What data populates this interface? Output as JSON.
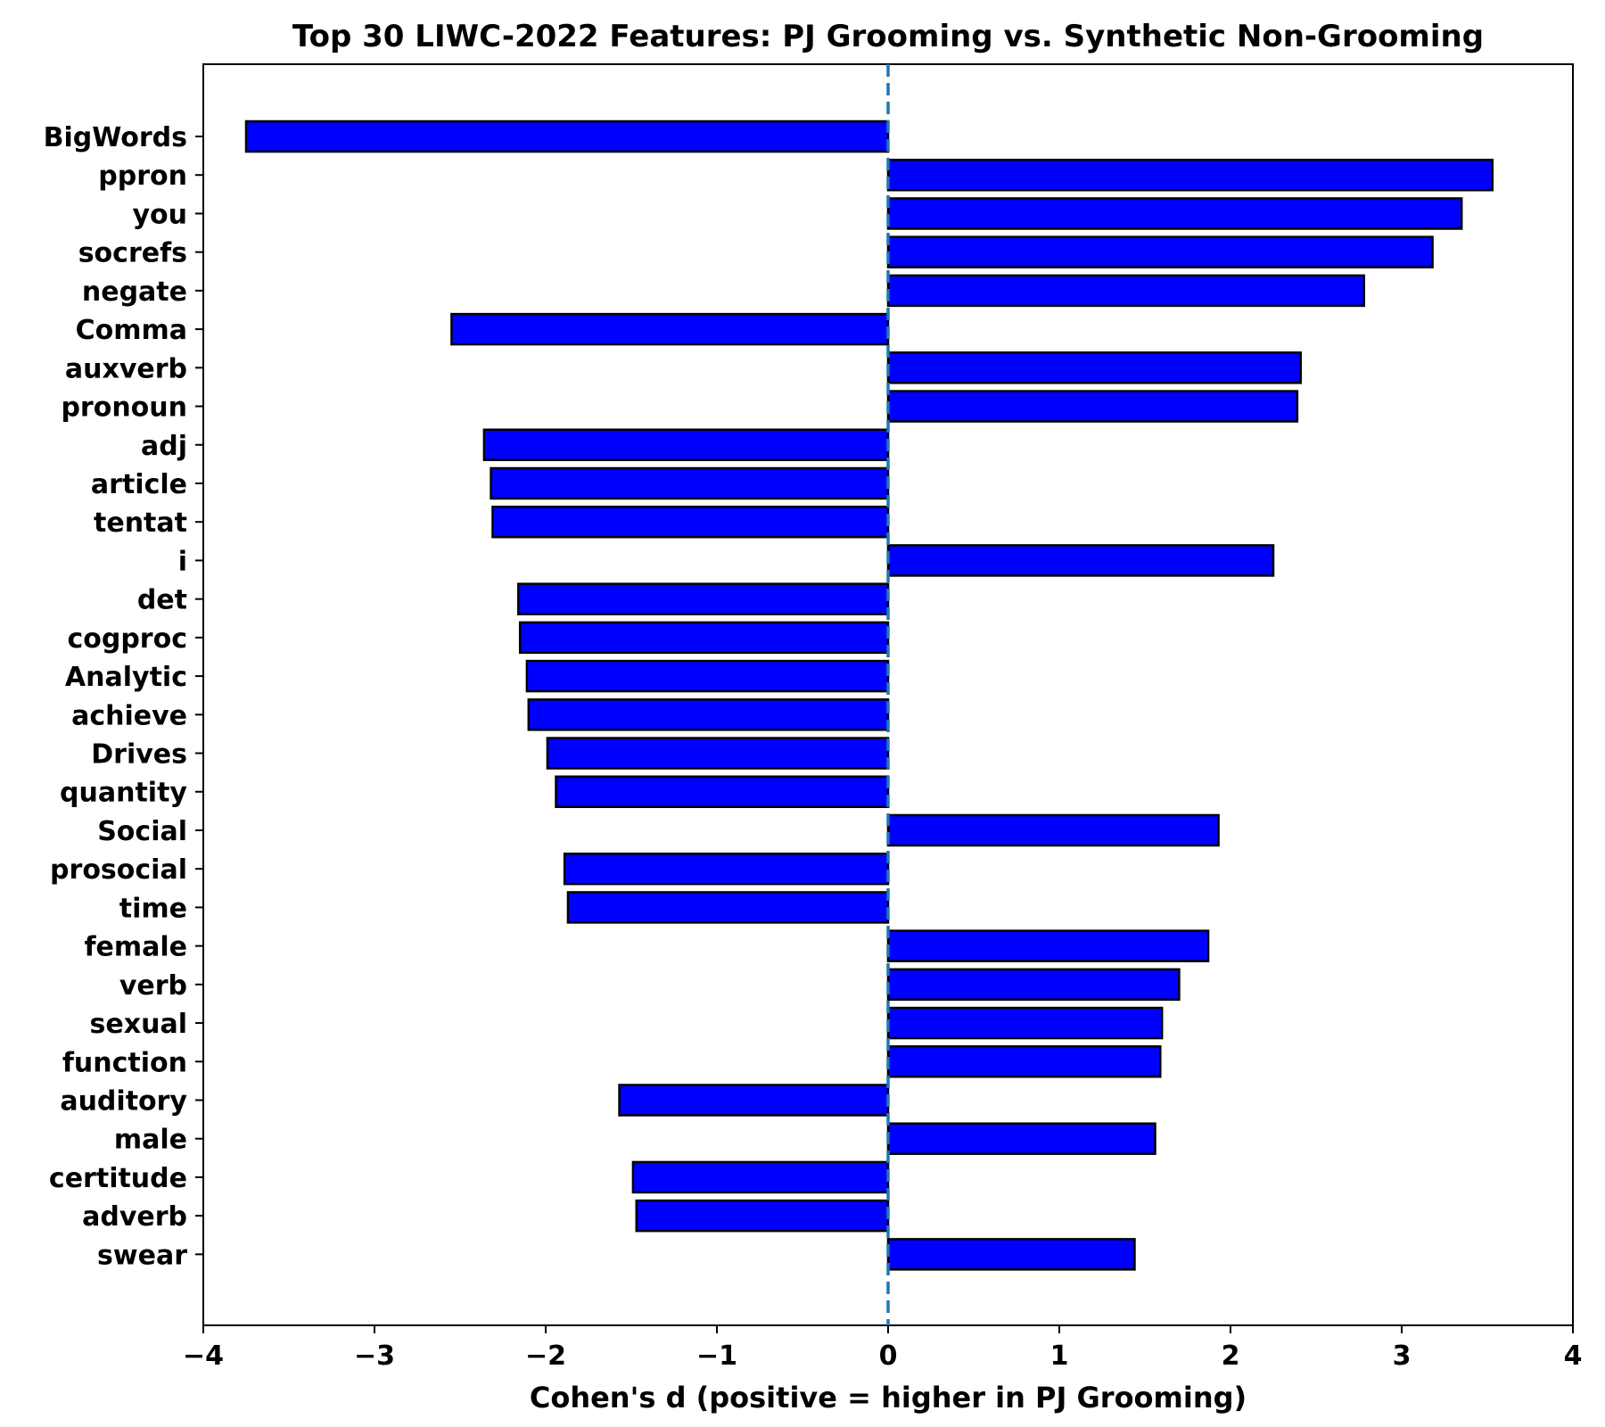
{
  "chart_data": {
    "type": "bar",
    "orientation": "horizontal",
    "title": "Top 30 LIWC-2022 Features: PJ Grooming vs. Synthetic Non-Grooming",
    "xlabel": "Cohen's d (positive = higher in PJ Grooming)",
    "ylabel": "",
    "xlim": [
      -4,
      4
    ],
    "xticks": [
      -4,
      -3,
      -2,
      -1,
      0,
      1,
      2,
      3,
      4
    ],
    "xtick_labels": [
      "−4",
      "−3",
      "−2",
      "−1",
      "0",
      "1",
      "2",
      "3",
      "4"
    ],
    "grid": false,
    "bar_color": "#0000ff",
    "bar_edge_color": "#000000",
    "reference_line": {
      "x": 0,
      "style": "dashed",
      "color": "#1f77b4"
    },
    "categories": [
      "BigWords",
      "ppron",
      "you",
      "socrefs",
      "negate",
      "Comma",
      "auxverb",
      "pronoun",
      "adj",
      "article",
      "tentat",
      "i",
      "det",
      "cogproc",
      "Analytic",
      "achieve",
      "Drives",
      "quantity",
      "Social",
      "prosocial",
      "time",
      "female",
      "verb",
      "sexual",
      "function",
      "auditory",
      "male",
      "certitude",
      "adverb",
      "swear"
    ],
    "values": [
      -3.75,
      3.53,
      3.35,
      3.18,
      2.78,
      -2.55,
      2.41,
      2.39,
      -2.36,
      -2.32,
      -2.31,
      2.25,
      -2.16,
      -2.15,
      -2.11,
      -2.1,
      -1.99,
      -1.94,
      1.93,
      -1.89,
      -1.87,
      1.87,
      1.7,
      1.6,
      1.59,
      -1.57,
      1.56,
      -1.49,
      -1.47,
      1.44
    ]
  }
}
